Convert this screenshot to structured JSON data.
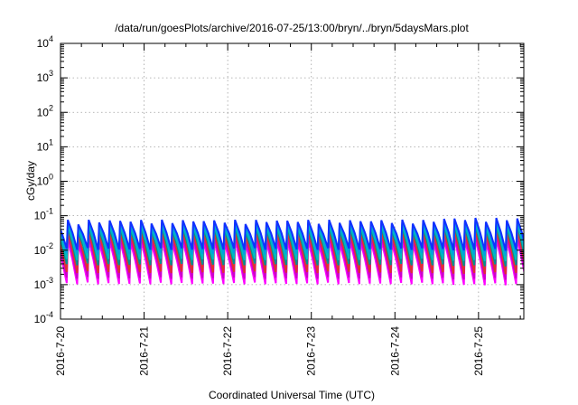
{
  "chart_data": {
    "type": "line",
    "title": "/data/run/goesPlots/archive/2016-07-25/13:00/bryn/../bryn/5daysMars.plot",
    "xlabel": "Coordinated Universal Time (UTC)",
    "ylabel": "cGy/day",
    "y_scale": "log",
    "ylim": [
      0.0001,
      10000
    ],
    "y_ticks": [
      {
        "value": 0.0001,
        "base": "10",
        "exp": "-4"
      },
      {
        "value": 0.001,
        "base": "10",
        "exp": "-3"
      },
      {
        "value": 0.01,
        "base": "10",
        "exp": "-2"
      },
      {
        "value": 0.1,
        "base": "10",
        "exp": "-1"
      },
      {
        "value": 1,
        "base": "10",
        "exp": "0"
      },
      {
        "value": 10,
        "base": "10",
        "exp": "1"
      },
      {
        "value": 100,
        "base": "10",
        "exp": "2"
      },
      {
        "value": 1000,
        "base": "10",
        "exp": "3"
      },
      {
        "value": 10000,
        "base": "10",
        "exp": "4"
      }
    ],
    "xlim": [
      "2016-07-20T00:00",
      "2016-07-25T13:00"
    ],
    "x_ticks": [
      "2016-7-20",
      "2016-7-21",
      "2016-7-22",
      "2016-7-23",
      "2016-7-24",
      "2016-7-25"
    ],
    "x_tick_dates": [
      "2016-07-20",
      "2016-07-21",
      "2016-07-22",
      "2016-07-23",
      "2016-07-24",
      "2016-07-25"
    ],
    "grid": true,
    "legend": "none",
    "pattern": {
      "description_values": "sawtooth dose-rate traces, one cycle about every 3 hours; each cycle jumps to the peak then decays to the trough",
      "period_hours": 3
    },
    "series": [
      {
        "color": "#ff00ff",
        "peak": 0.018,
        "trough": 0.0009
      },
      {
        "color": "#cc00cc",
        "peak": 0.024,
        "trough": 0.0013
      },
      {
        "color": "#e03030",
        "peak": 0.032,
        "trough": 0.0019
      },
      {
        "color": "#009090",
        "peak": 0.043,
        "trough": 0.0032
      },
      {
        "color": "#00bcbc",
        "peak": 0.05,
        "trough": 0.0045
      },
      {
        "color": "#00a0e0",
        "peak": 0.058,
        "trough": 0.0065
      },
      {
        "color": "#1030ff",
        "peak": 0.068,
        "trough": 0.009
      }
    ]
  }
}
